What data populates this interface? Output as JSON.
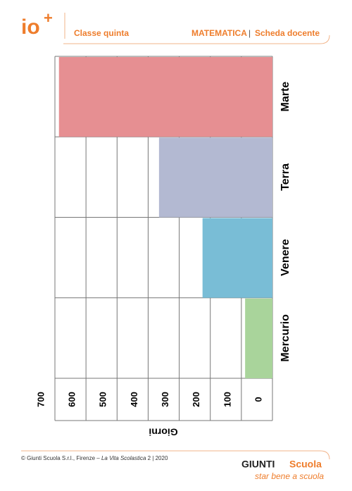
{
  "header": {
    "logo": "io",
    "logo_mark": "+",
    "class": "Classe quinta",
    "subject": "MATEMATICA",
    "separator": "|",
    "doc": "Scheda docente"
  },
  "chart_data": {
    "type": "bar",
    "categories": [
      "Mercurio",
      "Venere",
      "Terra",
      "Marte"
    ],
    "values": [
      88,
      225,
      365,
      687
    ],
    "colors": [
      "#a9d49b",
      "#79bdd6",
      "#b3b9d2",
      "#e68f92"
    ],
    "xlabel": "Giorni",
    "ylim": [
      0,
      700
    ],
    "yticks": [
      0,
      100,
      200,
      300,
      400,
      500,
      600,
      700
    ],
    "grid": true
  },
  "footer": {
    "copyright": "© Giunti Scuola S.r.l., Firenze – ",
    "book": "La Vita Scolastica",
    "issue": " 2 | 2020",
    "brand": "GIUNTI",
    "brand2": "Scuola",
    "tagline": "star bene a scuola"
  }
}
